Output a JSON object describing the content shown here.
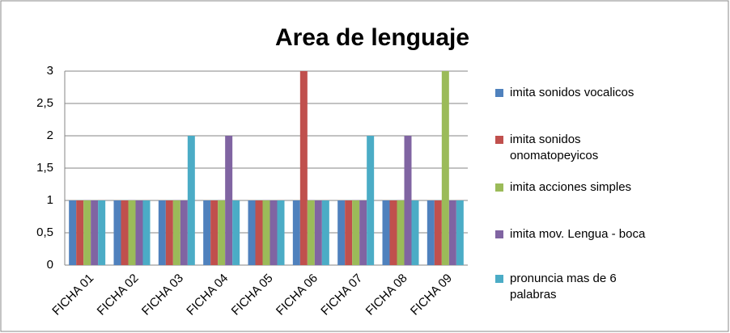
{
  "chart_data": {
    "type": "bar",
    "title": "Area de lenguaje",
    "categories": [
      "FICHA 01",
      "FICHA 02",
      "FICHA 03",
      "FICHA 04",
      "FICHA 05",
      "FICHA 06",
      "FICHA 07",
      "FICHA 08",
      "FICHA 09"
    ],
    "series": [
      {
        "name": "imita sonidos vocalicos",
        "color": "#4f81bd",
        "values": [
          1,
          1,
          1,
          1,
          1,
          1,
          1,
          1,
          1
        ]
      },
      {
        "name": "imita sonidos onomatopeyicos",
        "color": "#c0504d",
        "values": [
          1,
          1,
          1,
          1,
          1,
          3,
          1,
          1,
          1
        ]
      },
      {
        "name": "imita acciones simples",
        "color": "#9bbb59",
        "values": [
          1,
          1,
          1,
          1,
          1,
          1,
          1,
          1,
          3
        ]
      },
      {
        "name": "imita mov. Lengua - boca",
        "color": "#8064a2",
        "values": [
          1,
          1,
          1,
          2,
          1,
          1,
          1,
          2,
          1
        ]
      },
      {
        "name": "pronuncia mas de 6 palabras",
        "color": "#4bacc6",
        "values": [
          1,
          1,
          2,
          1,
          1,
          1,
          2,
          1,
          1
        ]
      }
    ],
    "ylim": [
      0,
      3
    ],
    "yticks": [
      0,
      {
        "value": 0.5,
        "label": "0,5"
      },
      1,
      {
        "value": 1.5,
        "label": "1,5"
      },
      2,
      {
        "value": 2.5,
        "label": "2,5"
      },
      3
    ],
    "grid": true,
    "legend": "right"
  }
}
